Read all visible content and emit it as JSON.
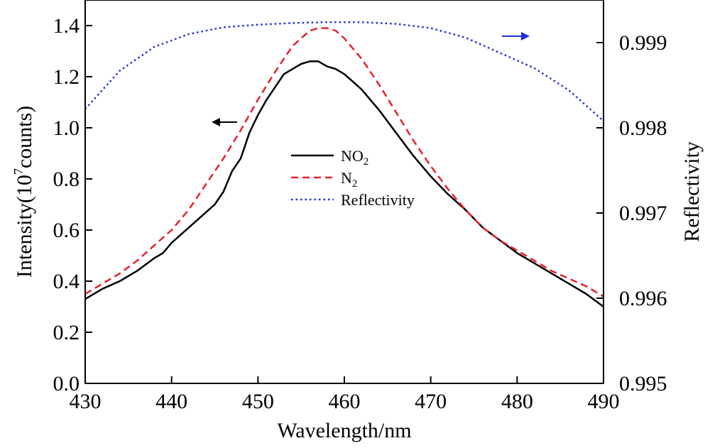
{
  "chart_data": {
    "type": "line",
    "title": "",
    "xlabel": "Wavelength/nm",
    "ylabel": "Intensity(10",
    "ylabel_sup": "7",
    "ylabel_tail": "counts)",
    "y2label": "Reflectivity",
    "xlim": [
      430,
      490
    ],
    "ylim": [
      0,
      1.5
    ],
    "y2lim": [
      0.995,
      0.9995
    ],
    "xticks": [
      "430",
      "440",
      "450",
      "460",
      "470",
      "480",
      "490"
    ],
    "yticks": [
      "0.0",
      "0.2",
      "0.4",
      "0.6",
      "0.8",
      "1.0",
      "1.2",
      "1.4"
    ],
    "y2ticks": [
      "0.995",
      "0.996",
      "0.997",
      "0.998",
      "0.999"
    ],
    "legend_position": "center",
    "series": [
      {
        "name": "NO",
        "name_sub": "2",
        "axis": "left",
        "color": "#000000",
        "style": "solid",
        "x": [
          430,
          432,
          434,
          436,
          438,
          439,
          440,
          442,
          444,
          445,
          446,
          447,
          448,
          449,
          450,
          451,
          452,
          453,
          454,
          455,
          456,
          457,
          458,
          459,
          460,
          461,
          462,
          463,
          464,
          466,
          468,
          470,
          472,
          474,
          476,
          478,
          480,
          482,
          484,
          486,
          488,
          490
        ],
        "y": [
          0.33,
          0.37,
          0.4,
          0.44,
          0.49,
          0.51,
          0.55,
          0.61,
          0.67,
          0.7,
          0.75,
          0.83,
          0.88,
          0.98,
          1.05,
          1.11,
          1.16,
          1.21,
          1.23,
          1.25,
          1.26,
          1.26,
          1.24,
          1.23,
          1.21,
          1.18,
          1.15,
          1.11,
          1.07,
          0.98,
          0.89,
          0.81,
          0.74,
          0.68,
          0.61,
          0.56,
          0.51,
          0.47,
          0.43,
          0.39,
          0.35,
          0.3
        ]
      },
      {
        "name": "N",
        "name_sub": "2",
        "axis": "left",
        "color": "#e8202a",
        "style": "dashed",
        "x": [
          430,
          432,
          434,
          436,
          438,
          440,
          442,
          444,
          446,
          448,
          450,
          452,
          454,
          456,
          457,
          458,
          459,
          460,
          462,
          464,
          466,
          468,
          470,
          472,
          474,
          476,
          478,
          480,
          482,
          484,
          486,
          488,
          490
        ],
        "y": [
          0.35,
          0.39,
          0.43,
          0.48,
          0.54,
          0.6,
          0.68,
          0.78,
          0.88,
          0.99,
          1.11,
          1.22,
          1.32,
          1.38,
          1.39,
          1.39,
          1.38,
          1.35,
          1.27,
          1.17,
          1.06,
          0.95,
          0.85,
          0.76,
          0.68,
          0.61,
          0.56,
          0.52,
          0.48,
          0.44,
          0.41,
          0.38,
          0.34
        ]
      },
      {
        "name": "Reflectivity",
        "axis": "right",
        "color": "#1f2fe0",
        "style": "dotted",
        "x": [
          430,
          434,
          438,
          442,
          446,
          450,
          454,
          458,
          462,
          466,
          470,
          474,
          478,
          482,
          486,
          490
        ],
        "y": [
          0.99822,
          0.99867,
          0.99895,
          0.9991,
          0.99918,
          0.99921,
          0.99923,
          0.99924,
          0.99924,
          0.99922,
          0.99917,
          0.99906,
          0.99888,
          0.9987,
          0.99844,
          0.99808
        ]
      }
    ],
    "annotations": [
      {
        "type": "arrow",
        "direction": "left",
        "color": "#000000",
        "points_to": "left-axis"
      },
      {
        "type": "arrow",
        "direction": "right",
        "color": "#1f2fe0",
        "points_to": "right-axis"
      }
    ]
  }
}
